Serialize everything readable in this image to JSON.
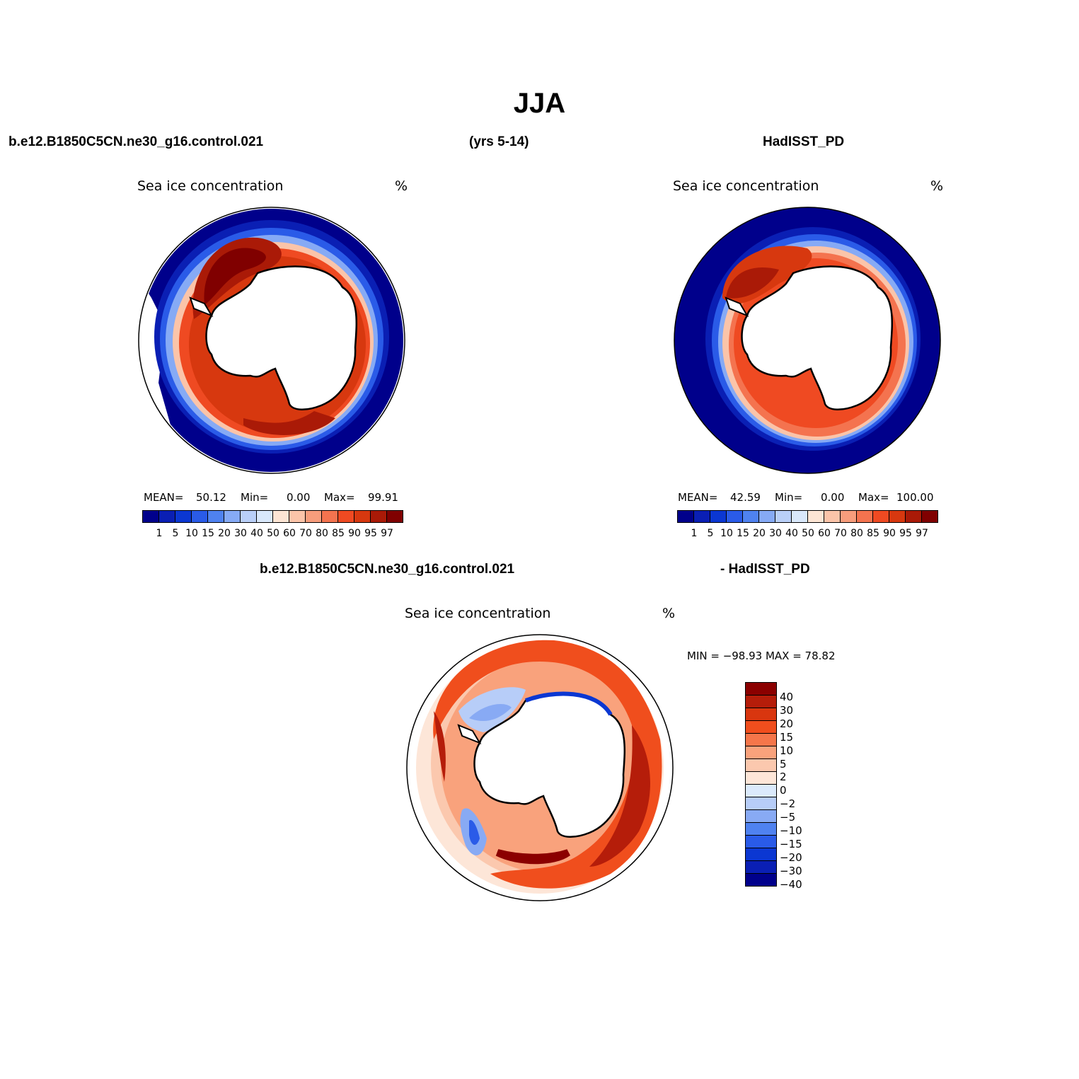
{
  "title": "JJA",
  "header": {
    "case": "b.e12.B1850C5CN.ne30_g16.control.021",
    "years": "(yrs 5-14)",
    "obs": "HadISST_PD",
    "diff_case": "b.e12.B1850C5CN.ne30_g16.control.021",
    "diff_obs": "- HadISST_PD"
  },
  "panels": [
    {
      "name": "model",
      "variable": "Sea ice concentration",
      "units": "%",
      "mean_label": "MEAN=",
      "mean": "50.12",
      "min_label": "Min=",
      "min": "0.00",
      "max_label": "Max=",
      "max": "99.91"
    },
    {
      "name": "obs",
      "variable": "Sea ice concentration",
      "units": "%",
      "mean_label": "MEAN=",
      "mean": "42.59",
      "min_label": "Min=",
      "min": "0.00",
      "max_label": "Max=",
      "max": "100.00"
    },
    {
      "name": "difference",
      "variable": "Sea ice concentration",
      "units": "%",
      "minmax": "MIN = −98.93  MAX =   78.82"
    }
  ],
  "abs_colorbar": {
    "levels": [
      "1",
      "5",
      "10",
      "15",
      "20",
      "30",
      "40",
      "50",
      "60",
      "70",
      "80",
      "85",
      "90",
      "95",
      "97"
    ],
    "colors": [
      "#00008b",
      "#0a1fb4",
      "#0b37d2",
      "#2a5be8",
      "#4f82f0",
      "#86aaf5",
      "#b9cff8",
      "#d9e8fb",
      "#fde5d4",
      "#fbc4a9",
      "#f79d7c",
      "#f4734f",
      "#ef4a22",
      "#d7380f",
      "#aa1a07",
      "#800000"
    ]
  },
  "diff_colorbar": {
    "levels": [
      "40",
      "30",
      "20",
      "15",
      "10",
      "5",
      "2",
      "0",
      "−2",
      "−5",
      "−10",
      "−15",
      "−20",
      "−30",
      "−40"
    ],
    "colors": [
      "#8b0000",
      "#b51d0a",
      "#d9360f",
      "#f04e1d",
      "#f5764a",
      "#f9a27c",
      "#fbc8ae",
      "#fde6d8",
      "#dbeafc",
      "#b7cdf8",
      "#88aaf4",
      "#4f82f0",
      "#2a5be8",
      "#0b37d2",
      "#0a1fb4",
      "#00008b"
    ]
  },
  "colors": {
    "land": "#ffffff",
    "coast": "#000000"
  }
}
